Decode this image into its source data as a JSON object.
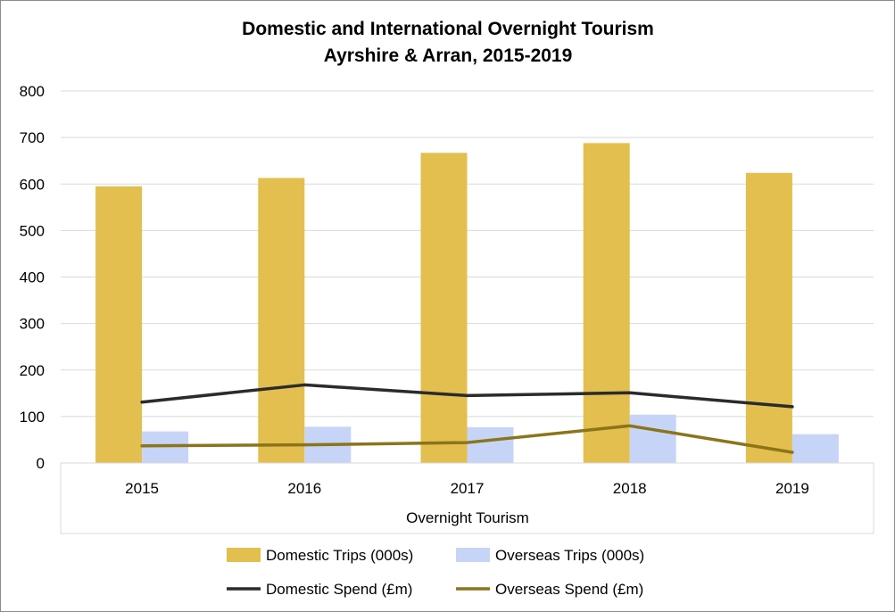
{
  "chart_data": {
    "type": "bar",
    "title": "Domestic and International Overnight Tourism",
    "subtitle": "Ayrshire & Arran, 2015-2019",
    "xlabel": "Overnight Tourism",
    "ylabel": "",
    "ylim": [
      0,
      800
    ],
    "yticks": [
      "0",
      "100",
      "200",
      "300",
      "400",
      "500",
      "600",
      "700",
      "800"
    ],
    "categories": [
      "2015",
      "2016",
      "2017",
      "2018",
      "2019"
    ],
    "grid": true,
    "legend_position": "bottom",
    "series": [
      {
        "name": "Domestic Trips (000s)",
        "kind": "bar",
        "color": "#E2BF4F",
        "values": [
          595,
          613,
          667,
          688,
          624
        ]
      },
      {
        "name": "Overseas Trips (000s)",
        "kind": "bar",
        "color": "#C6D5F7",
        "values": [
          68,
          78,
          77,
          104,
          62
        ]
      },
      {
        "name": "Domestic Spend (£m)",
        "kind": "line",
        "color": "#2B2B2B",
        "values": [
          131,
          168,
          145,
          151,
          121
        ]
      },
      {
        "name": "Overseas Spend (£m)",
        "kind": "line",
        "color": "#8B7419",
        "values": [
          37,
          39,
          44,
          80,
          23
        ]
      }
    ]
  }
}
